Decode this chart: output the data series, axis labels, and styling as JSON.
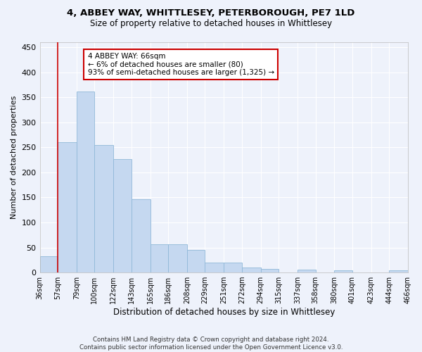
{
  "title": "4, ABBEY WAY, WHITTLESEY, PETERBOROUGH, PE7 1LD",
  "subtitle": "Size of property relative to detached houses in Whittlesey",
  "xlabel": "Distribution of detached houses by size in Whittlesey",
  "ylabel": "Number of detached properties",
  "bar_color": "#c5d8f0",
  "bar_edge_color": "#90b8d8",
  "background_color": "#eef2fb",
  "grid_color": "#ffffff",
  "annotation_text": "4 ABBEY WAY: 66sqm\n← 6% of detached houses are smaller (80)\n93% of semi-detached houses are larger (1,325) →",
  "annotation_box_color": "#ffffff",
  "annotation_box_edge": "#cc0000",
  "vline_color": "#cc0000",
  "vline_x": 57,
  "footer_text": "Contains HM Land Registry data © Crown copyright and database right 2024.\nContains public sector information licensed under the Open Government Licence v3.0.",
  "bin_edges": [
    36,
    57,
    79,
    100,
    122,
    143,
    165,
    186,
    208,
    229,
    251,
    272,
    294,
    315,
    337,
    358,
    380,
    401,
    423,
    444,
    466
  ],
  "bar_heights": [
    33,
    260,
    362,
    255,
    226,
    147,
    57,
    57,
    45,
    20,
    20,
    10,
    7,
    0,
    6,
    0,
    4,
    0,
    0,
    4
  ],
  "ylim": [
    0,
    460
  ],
  "yticks": [
    0,
    50,
    100,
    150,
    200,
    250,
    300,
    350,
    400,
    450
  ],
  "tick_labels": [
    "36sqm",
    "57sqm",
    "79sqm",
    "100sqm",
    "122sqm",
    "143sqm",
    "165sqm",
    "186sqm",
    "208sqm",
    "229sqm",
    "251sqm",
    "272sqm",
    "294sqm",
    "315sqm",
    "337sqm",
    "358sqm",
    "380sqm",
    "401sqm",
    "423sqm",
    "444sqm",
    "466sqm"
  ]
}
